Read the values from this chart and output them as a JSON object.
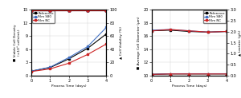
{
  "days": [
    0,
    1,
    2,
    3,
    4
  ],
  "left": {
    "density_reference": [
      1.0,
      1.8,
      3.8,
      6.2,
      9.5
    ],
    "density_s80": [
      1.0,
      1.9,
      4.1,
      6.6,
      11.0
    ],
    "density_nc": [
      0.9,
      1.5,
      2.8,
      4.8,
      7.2
    ],
    "viability_reference": [
      99.5,
      99.5,
      99.5,
      99.5,
      99.5
    ],
    "viability_s80": [
      99.5,
      99.5,
      99.5,
      99.5,
      99.5
    ],
    "viability_nc": [
      99.5,
      99.5,
      99.5,
      99.5,
      99.5
    ],
    "ylim_density": [
      0,
      15
    ],
    "ylim_viability": [
      0,
      100
    ],
    "yticks_density": [
      0,
      3,
      6,
      9,
      12,
      15
    ],
    "yticks_viability": [
      0,
      20,
      40,
      60,
      80,
      100
    ],
    "ylabel_left": "Viable Cell Density (×10⁶ cells/mL)",
    "ylabel_right": "▲ Cell Viability (%)",
    "xlabel": "Process Time (days)"
  },
  "right": {
    "diameter_reference": [
      16.8,
      16.9,
      16.7,
      16.6,
      16.7
    ],
    "diameter_s80": [
      16.9,
      17.0,
      16.8,
      16.6,
      16.7
    ],
    "diameter_nc": [
      16.8,
      17.0,
      16.8,
      16.6,
      16.7
    ],
    "lactate_reference": [
      0.05,
      0.07,
      0.07,
      0.07,
      0.07
    ],
    "lactate_s80": [
      0.05,
      0.08,
      0.08,
      0.08,
      0.08
    ],
    "lactate_nc": [
      0.05,
      0.07,
      0.07,
      0.07,
      0.07
    ],
    "ylim_diameter": [
      10,
      20
    ],
    "ylim_lactate": [
      0.0,
      3.0
    ],
    "yticks_diameter": [
      10,
      12,
      14,
      16,
      18,
      20
    ],
    "yticks_lactate": [
      0.0,
      0.5,
      1.0,
      1.5,
      2.0,
      2.5,
      3.0
    ],
    "ylabel_left": "Average Cell Diameter (μm)",
    "ylabel_right": "▲ Lactate (g/L)",
    "xlabel": "Process Time (days)"
  },
  "colors": {
    "reference": "#000000",
    "s80": "#4472C4",
    "nc": "#CC2222"
  },
  "series": [
    "reference",
    "s80",
    "nc"
  ],
  "legend_labels": [
    "Reference",
    "Film S80",
    "Film NC"
  ]
}
